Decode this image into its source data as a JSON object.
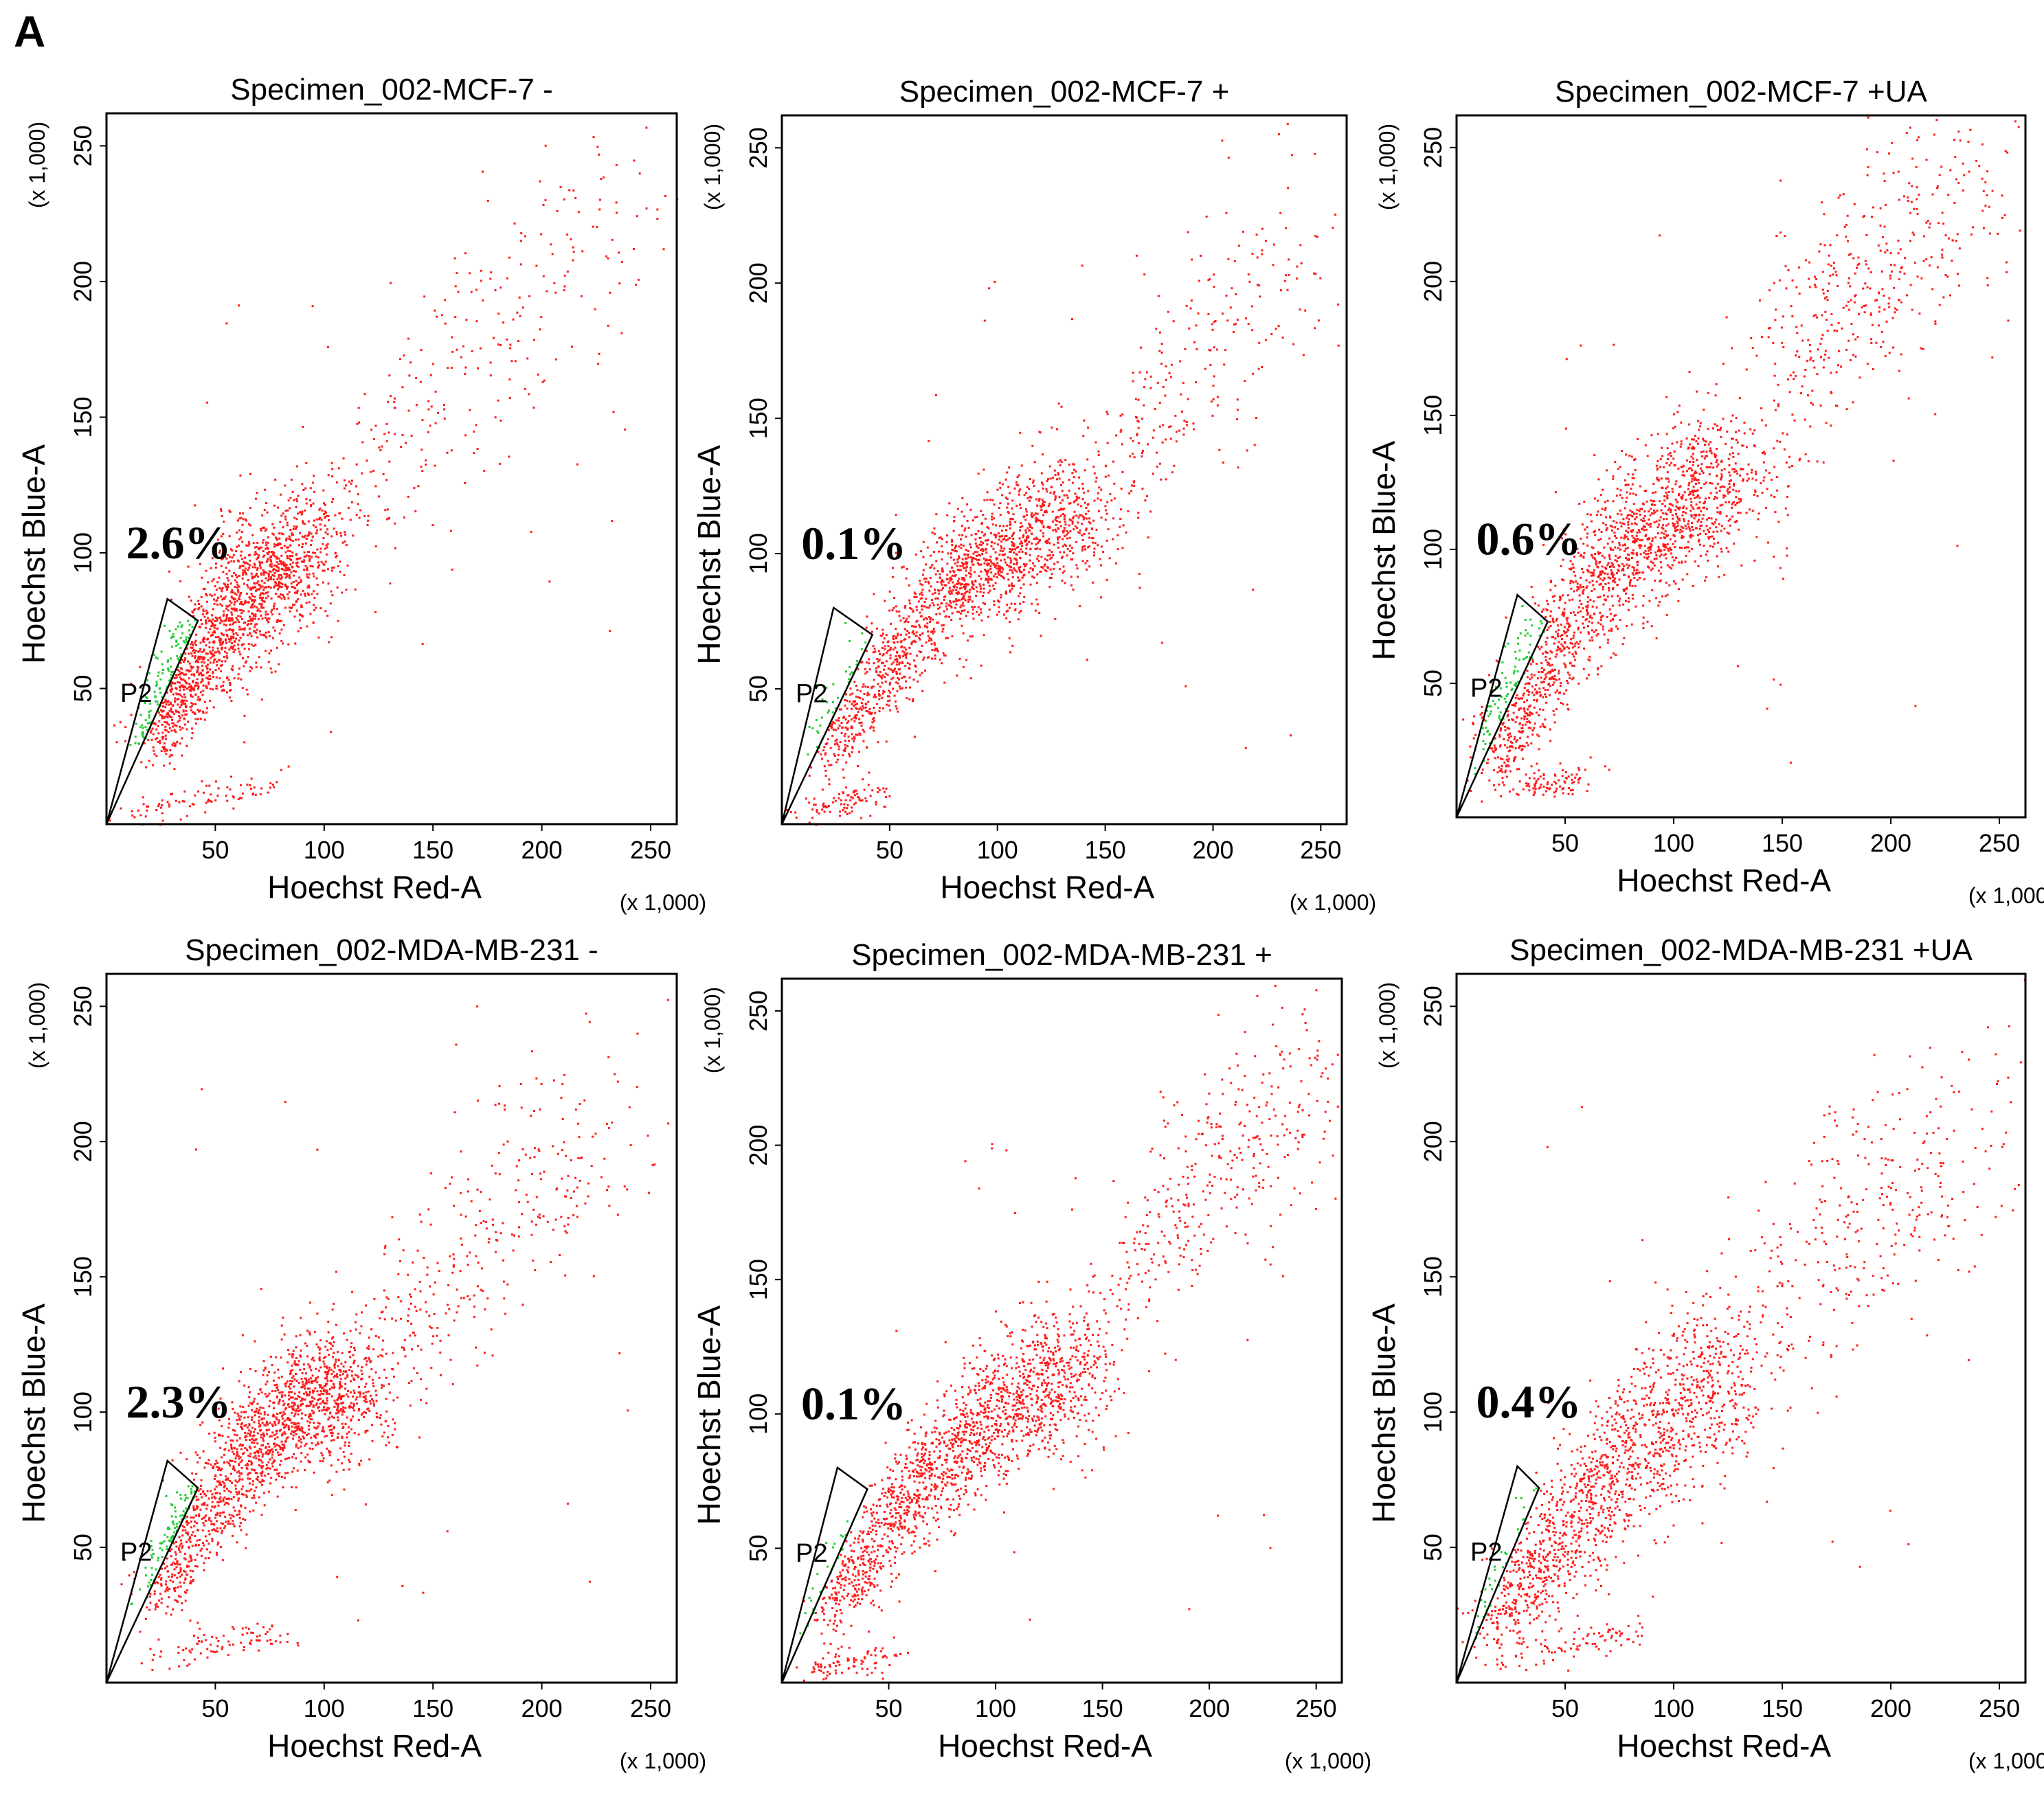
{
  "figure": {
    "panel_letter": "A",
    "colors": {
      "events": "#ff1a1a",
      "gated": "#22cc33",
      "axes": "#000000",
      "background": "#ffffff"
    }
  },
  "chart_data": [
    {
      "type": "scatter",
      "title": "Specimen_002-MCF-7 -",
      "xlabel": "Hoechst Red-A",
      "ylabel": "Hoechst Blue-A",
      "x_multiplier": "(x 1,000)",
      "y_multiplier": "(x 1,000)",
      "xlim": [
        0,
        262
      ],
      "ylim": [
        0,
        262
      ],
      "x_ticks": [
        50,
        100,
        150,
        200,
        250
      ],
      "y_ticks": [
        50,
        100,
        150,
        200,
        250
      ],
      "gate": {
        "name": "P2",
        "percent": "2.6%",
        "polygon": [
          [
            0,
            0
          ],
          [
            28,
            83
          ],
          [
            42,
            75
          ]
        ]
      },
      "population": {
        "core": [
          [
            20,
            30
          ],
          [
            45,
            62
          ],
          [
            70,
            90
          ],
          [
            95,
            105
          ]
        ],
        "tail": [
          [
            110,
            118
          ],
          [
            140,
            145
          ],
          [
            170,
            175
          ],
          [
            200,
            200
          ],
          [
            240,
            240
          ]
        ],
        "spread": 10,
        "core_count": 1700,
        "tail_count": 260,
        "low_arm": [
          [
            10,
            3
          ],
          [
            40,
            10
          ],
          [
            80,
            16
          ]
        ]
      }
    },
    {
      "type": "scatter",
      "title": "Specimen_002-MCF-7 +",
      "xlabel": "Hoechst Red-A",
      "ylabel": "Hoechst Blue-A",
      "x_multiplier": "(x 1,000)",
      "y_multiplier": "(x 1,000)",
      "xlim": [
        0,
        262
      ],
      "ylim": [
        0,
        262
      ],
      "x_ticks": [
        50,
        100,
        150,
        200,
        250
      ],
      "y_ticks": [
        50,
        100,
        150,
        200,
        250
      ],
      "gate": {
        "name": "P2",
        "percent": "0.1%",
        "polygon": [
          [
            0,
            0
          ],
          [
            24,
            80
          ],
          [
            42,
            70
          ]
        ]
      },
      "population": {
        "core": [
          [
            20,
            25
          ],
          [
            50,
            60
          ],
          [
            80,
            90
          ],
          [
            110,
            105
          ],
          [
            140,
            118
          ]
        ],
        "tail": [
          [
            150,
            130
          ],
          [
            180,
            160
          ],
          [
            210,
            190
          ],
          [
            245,
            220
          ]
        ],
        "spread": 10,
        "core_count": 1700,
        "tail_count": 240,
        "low_arm": [
          [
            10,
            5
          ],
          [
            30,
            8
          ],
          [
            45,
            12
          ]
        ]
      }
    },
    {
      "type": "scatter",
      "title": "Specimen_002-MCF-7 +UA",
      "xlabel": "Hoechst Red-A",
      "ylabel": "Hoechst Blue-A",
      "x_multiplier": "(x 1,000)",
      "y_multiplier": "(x 1,000)",
      "xlim": [
        0,
        262
      ],
      "ylim": [
        0,
        262
      ],
      "x_ticks": [
        50,
        100,
        150,
        200,
        250
      ],
      "y_ticks": [
        50,
        100,
        150,
        200,
        250
      ],
      "gate": {
        "name": "P2",
        "percent": "0.6%",
        "polygon": [
          [
            0,
            0
          ],
          [
            28,
            83
          ],
          [
            42,
            73
          ]
        ]
      },
      "population": {
        "core": [
          [
            15,
            20
          ],
          [
            40,
            55
          ],
          [
            70,
            95
          ],
          [
            100,
            115
          ],
          [
            130,
            130
          ]
        ],
        "tail": [
          [
            150,
            160
          ],
          [
            180,
            195
          ],
          [
            210,
            220
          ],
          [
            240,
            245
          ]
        ],
        "spread": 11,
        "core_count": 1800,
        "tail_count": 420,
        "low_arm": [
          [
            30,
            12
          ],
          [
            60,
            15
          ]
        ]
      }
    },
    {
      "type": "scatter",
      "title": "Specimen_002-MDA-MB-231 -",
      "xlabel": "Hoechst Red-A",
      "ylabel": "Hoechst Blue-A",
      "x_multiplier": "(x 1,000)",
      "y_multiplier": "(x 1,000)",
      "xlim": [
        0,
        262
      ],
      "ylim": [
        0,
        262
      ],
      "x_ticks": [
        50,
        100,
        150,
        200,
        250
      ],
      "y_ticks": [
        50,
        100,
        150,
        200,
        250
      ],
      "gate": {
        "name": "P2",
        "percent": "2.3%",
        "polygon": [
          [
            0,
            0
          ],
          [
            28,
            82
          ],
          [
            42,
            72
          ]
        ]
      },
      "population": {
        "core": [
          [
            20,
            30
          ],
          [
            45,
            62
          ],
          [
            70,
            92
          ],
          [
            95,
            105
          ],
          [
            115,
            110
          ]
        ],
        "tail": [
          [
            130,
            125
          ],
          [
            160,
            155
          ],
          [
            190,
            180
          ],
          [
            230,
            210
          ]
        ],
        "spread": 10,
        "core_count": 1700,
        "tail_count": 300,
        "low_arm": [
          [
            20,
            8
          ],
          [
            50,
            15
          ],
          [
            80,
            18
          ]
        ]
      }
    },
    {
      "type": "scatter",
      "title": "Specimen_002-MDA-MB-231 +",
      "xlabel": "Hoechst Red-A",
      "ylabel": "Hoechst Blue-A",
      "x_multiplier": "(x 1,000)",
      "y_multiplier": "(x 1,000)",
      "xlim": [
        0,
        262
      ],
      "ylim": [
        0,
        262
      ],
      "x_ticks": [
        50,
        100,
        150,
        200,
        250
      ],
      "y_ticks": [
        50,
        100,
        150,
        200,
        250
      ],
      "gate": {
        "name": "P2",
        "percent": "0.1%",
        "polygon": [
          [
            0,
            0
          ],
          [
            26,
            80
          ],
          [
            40,
            72
          ]
        ]
      },
      "population": {
        "core": [
          [
            20,
            25
          ],
          [
            50,
            60
          ],
          [
            80,
            88
          ],
          [
            110,
            105
          ],
          [
            140,
            120
          ]
        ],
        "tail": [
          [
            160,
            150
          ],
          [
            190,
            180
          ],
          [
            220,
            205
          ],
          [
            250,
            235
          ]
        ],
        "spread": 10,
        "core_count": 1700,
        "tail_count": 360,
        "low_arm": [
          [
            10,
            4
          ],
          [
            30,
            8
          ],
          [
            50,
            10
          ]
        ]
      }
    },
    {
      "type": "scatter",
      "title": "Specimen_002-MDA-MB-231 +UA",
      "xlabel": "Hoechst Red-A",
      "ylabel": "Hoechst Blue-A",
      "x_multiplier": "(x 1,000)",
      "y_multiplier": "(x 1,000)",
      "xlim": [
        0,
        262
      ],
      "ylim": [
        0,
        262
      ],
      "x_ticks": [
        50,
        100,
        150,
        200,
        250
      ],
      "y_ticks": [
        50,
        100,
        150,
        200,
        250
      ],
      "gate": {
        "name": "P2",
        "percent": "0.4%",
        "polygon": [
          [
            0,
            0
          ],
          [
            28,
            80
          ],
          [
            38,
            72
          ]
        ]
      },
      "population": {
        "core": [
          [
            15,
            20
          ],
          [
            40,
            45
          ],
          [
            70,
            75
          ],
          [
            100,
            100
          ],
          [
            130,
            120
          ]
        ],
        "tail": [
          [
            150,
            140
          ],
          [
            180,
            165
          ],
          [
            210,
            185
          ],
          [
            250,
            215
          ]
        ],
        "spread": 12,
        "core_count": 1500,
        "tail_count": 300,
        "low_arm": [
          [
            20,
            8
          ],
          [
            60,
            15
          ],
          [
            80,
            20
          ]
        ]
      }
    }
  ]
}
